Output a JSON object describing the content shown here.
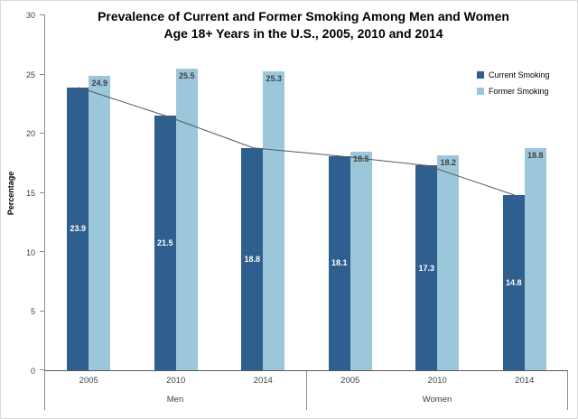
{
  "title": {
    "line1": "Prevalence of Current and Former Smoking Among Men and Women",
    "line2": "Age 18+ Years in the U.S., 2005, 2010 and 2014"
  },
  "chart_data": {
    "type": "bar",
    "title": "Prevalence of Current and Former Smoking Among Men and Women Age 18+ Years in the U.S., 2005, 2010 and 2014",
    "ylabel": "Percentage",
    "ylim": [
      0,
      30
    ],
    "ytick_step": 5,
    "yticks": [
      "0",
      "5",
      "10",
      "15",
      "20",
      "25",
      "30"
    ],
    "grid": false,
    "legend_position": "top-right",
    "groups": [
      {
        "label": "Men",
        "categories": [
          "2005",
          "2010",
          "2014"
        ]
      },
      {
        "label": "Women",
        "categories": [
          "2005",
          "2010",
          "2014"
        ]
      }
    ],
    "series": [
      {
        "name": "Current Smoking",
        "color": "#2F5F8F",
        "label_color": "#FFFFFF",
        "values": [
          [
            23.9,
            21.5,
            18.8
          ],
          [
            18.1,
            17.3,
            14.8
          ]
        ]
      },
      {
        "name": "Former Smoking",
        "color": "#9CC7DB",
        "label_color": "#404040",
        "values": [
          [
            24.9,
            25.5,
            25.3
          ],
          [
            18.5,
            18.2,
            18.8
          ]
        ]
      }
    ],
    "trend_line": {
      "follows_series": "Current Smoking",
      "color": "#595959"
    }
  }
}
